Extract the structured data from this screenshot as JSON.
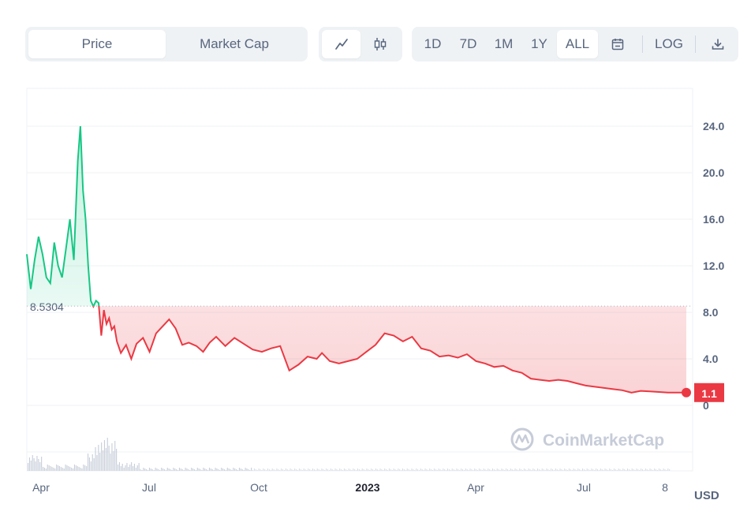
{
  "toolbar": {
    "metric_tabs": [
      {
        "label": "Price",
        "active": true
      },
      {
        "label": "Market Cap",
        "active": false
      }
    ],
    "chart_type_icons": [
      "line-chart-icon",
      "candlestick-icon"
    ],
    "timeframes": [
      {
        "label": "1D",
        "active": false
      },
      {
        "label": "7D",
        "active": false
      },
      {
        "label": "1M",
        "active": false
      },
      {
        "label": "1Y",
        "active": false
      },
      {
        "label": "ALL",
        "active": true
      }
    ],
    "calendar_icon": "calendar-icon",
    "log_label": "LOG",
    "download_icon": "download-icon"
  },
  "currency": "USD",
  "watermark": "CoinMarketCap",
  "colors": {
    "up": "#16c784",
    "down": "#ea3943",
    "grid": "#eff2f5"
  },
  "chart_data": {
    "type": "area",
    "title": "",
    "xlabel": "",
    "ylabel": "",
    "ylim": [
      0,
      26
    ],
    "y_ticks": [
      "0",
      "4.0",
      "8.0",
      "12.0",
      "16.0",
      "20.0",
      "24.0"
    ],
    "x_ticks": [
      {
        "label": "Apr",
        "bold": false
      },
      {
        "label": "Jul",
        "bold": false
      },
      {
        "label": "Oct",
        "bold": false
      },
      {
        "label": "2023",
        "bold": true
      },
      {
        "label": "Apr",
        "bold": false
      },
      {
        "label": "Jul",
        "bold": false
      },
      {
        "label": "8",
        "bold": false
      }
    ],
    "reference_price": 8.5304,
    "reference_label": "8.5304",
    "current_price": 1.1,
    "current_label": "1.1",
    "series": [
      {
        "x": [
          "2022-03-28",
          "2022-03-31",
          "2022-04-03",
          "2022-04-06",
          "2022-04-09",
          "2022-04-12",
          "2022-04-15",
          "2022-04-18",
          "2022-04-21",
          "2022-04-24",
          "2022-04-27",
          "2022-04-30",
          "2022-05-03",
          "2022-05-06",
          "2022-05-08",
          "2022-05-10",
          "2022-05-12",
          "2022-05-14",
          "2022-05-16",
          "2022-05-18",
          "2022-05-20",
          "2022-05-22",
          "2022-05-24",
          "2022-05-26",
          "2022-05-28",
          "2022-05-30",
          "2022-06-01",
          "2022-06-03",
          "2022-06-05",
          "2022-06-08",
          "2022-06-12",
          "2022-06-16",
          "2022-06-20",
          "2022-06-25",
          "2022-06-30",
          "2022-07-05",
          "2022-07-10",
          "2022-07-15",
          "2022-07-20",
          "2022-07-25",
          "2022-07-30",
          "2022-08-05",
          "2022-08-10",
          "2022-08-15",
          "2022-08-20",
          "2022-08-27",
          "2022-09-03",
          "2022-09-10",
          "2022-09-17",
          "2022-09-24",
          "2022-10-01",
          "2022-10-08",
          "2022-10-15",
          "2022-10-22",
          "2022-10-29",
          "2022-11-05",
          "2022-11-09",
          "2022-11-15",
          "2022-11-22",
          "2022-11-29",
          "2022-12-06",
          "2022-12-13",
          "2022-12-20",
          "2022-12-27",
          "2023-01-03",
          "2023-01-10",
          "2023-01-17",
          "2023-01-24",
          "2023-01-31",
          "2023-02-07",
          "2023-02-14",
          "2023-02-21",
          "2023-02-28",
          "2023-03-07",
          "2023-03-14",
          "2023-03-21",
          "2023-03-28",
          "2023-04-04",
          "2023-04-11",
          "2023-04-18",
          "2023-04-25",
          "2023-05-02",
          "2023-05-09",
          "2023-05-16",
          "2023-05-23",
          "2023-05-30",
          "2023-06-06",
          "2023-06-13",
          "2023-06-20",
          "2023-06-27",
          "2023-07-04",
          "2023-07-11",
          "2023-07-18",
          "2023-07-25",
          "2023-08-01",
          "2023-08-08",
          "2023-08-15"
        ],
        "y": [
          13.0,
          10.0,
          12.5,
          14.5,
          13.0,
          11.0,
          10.5,
          14.0,
          12.0,
          11.0,
          13.5,
          16.0,
          12.5,
          21.0,
          24.0,
          18.5,
          16.0,
          12.0,
          9.0,
          8.5,
          9.0,
          8.8,
          6.0,
          8.2,
          7.0,
          7.5,
          6.5,
          6.8,
          5.5,
          4.5,
          5.2,
          4.0,
          5.3,
          5.8,
          4.6,
          6.2,
          6.8,
          7.4,
          6.6,
          5.2,
          5.4,
          5.1,
          4.6,
          5.4,
          5.9,
          5.1,
          5.8,
          5.3,
          4.8,
          4.6,
          4.9,
          5.1,
          3.0,
          3.5,
          4.2,
          4.0,
          4.5,
          3.8,
          3.6,
          3.8,
          4.0,
          4.6,
          5.2,
          6.2,
          6.0,
          5.5,
          5.9,
          4.9,
          4.7,
          4.2,
          4.3,
          4.1,
          4.4,
          3.8,
          3.6,
          3.3,
          3.4,
          3.0,
          2.8,
          2.3,
          2.2,
          2.1,
          2.2,
          2.1,
          1.9,
          1.7,
          1.6,
          1.5,
          1.4,
          1.3,
          1.1,
          1.25,
          1.2,
          1.15,
          1.1,
          1.1,
          1.1
        ]
      }
    ],
    "volume_visible": true
  }
}
